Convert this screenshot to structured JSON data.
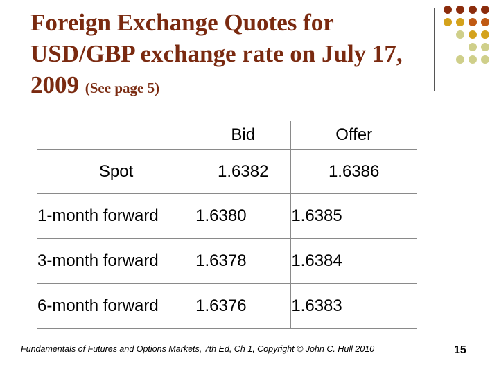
{
  "slide": {
    "title_main": "Foreign Exchange Quotes for USD/GBP exchange rate on July 17, 2009",
    "title_note": "(See page 5)",
    "footer": "Fundamentals of Futures and Options Markets, 7th Ed, Ch 1, Copyright © John C. Hull 2010",
    "page_number": "15",
    "accent_colors": [
      "#8b2c0c",
      "#c05a14",
      "#d4a21c",
      "#cfcf8a"
    ]
  },
  "table": {
    "columns": [
      "",
      "Bid",
      "Offer"
    ],
    "rows": [
      {
        "label": "Spot",
        "bid": "1.6382",
        "offer": "1.6386"
      },
      {
        "label": "1-month forward",
        "bid": "1.6380",
        "offer": "1.6385"
      },
      {
        "label": "3-month forward",
        "bid": "1.6378",
        "offer": "1.6384"
      },
      {
        "label": "6-month forward",
        "bid": "1.6376",
        "offer": "1.6383"
      }
    ]
  }
}
